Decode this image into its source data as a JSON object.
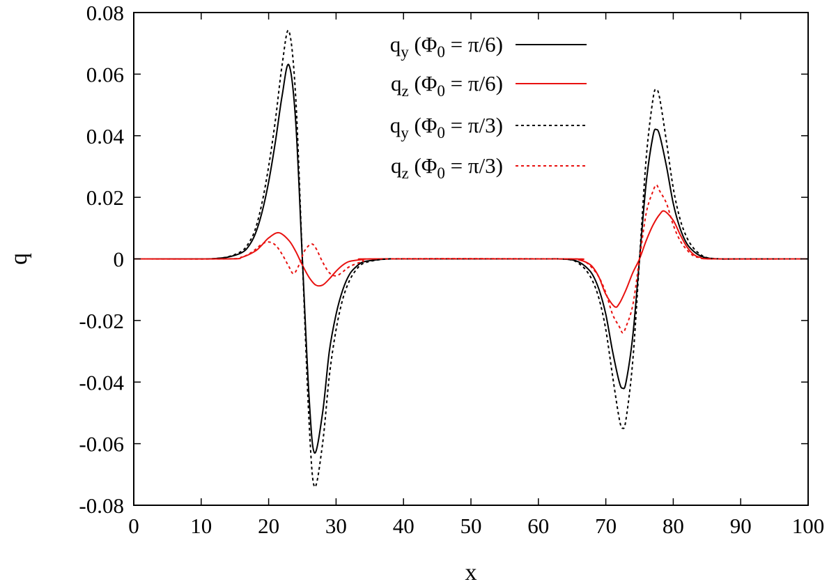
{
  "chart_data": {
    "type": "line",
    "title": "",
    "xlabel": "x",
    "ylabel": "q",
    "xlim": [
      0,
      100
    ],
    "ylim": [
      -0.08,
      0.08
    ],
    "xticks": [
      "0",
      "10",
      "20",
      "30",
      "40",
      "50",
      "60",
      "70",
      "80",
      "90",
      "100"
    ],
    "yticks": [
      "0.08",
      "0.06",
      "0.04",
      "0.02",
      "0",
      "-0.02",
      "-0.04",
      "-0.06",
      "-0.08"
    ],
    "grid": false,
    "legend_position": "top-center",
    "series": [
      {
        "name": "qy (Φ0 = π/6)",
        "legend": {
          "base": "q",
          "sub": "y",
          "open": " (Φ",
          "sub2": "0",
          "rest": " = π/6)"
        },
        "color": "#000000",
        "dash": "solid",
        "x": [
          0,
          10,
          12,
          14,
          16,
          17,
          18,
          19,
          20,
          21,
          22,
          23,
          24,
          25,
          26,
          26.8,
          28,
          29,
          30,
          31,
          32,
          33,
          34,
          36,
          38,
          40,
          60,
          63,
          65,
          66,
          67,
          68,
          69,
          70,
          71,
          72,
          72.5,
          73,
          74,
          75,
          76,
          77,
          77.5,
          78,
          79,
          80,
          81,
          82,
          83,
          84,
          85,
          87,
          90,
          100
        ],
        "y": [
          0,
          0,
          0.0001,
          0.0006,
          0.002,
          0.004,
          0.008,
          0.015,
          0.025,
          0.038,
          0.053,
          0.063,
          0.045,
          0.0,
          -0.045,
          -0.063,
          -0.05,
          -0.03,
          -0.018,
          -0.01,
          -0.005,
          -0.0025,
          -0.001,
          -0.0003,
          0,
          0,
          0,
          0,
          -0.0003,
          -0.001,
          -0.0025,
          -0.005,
          -0.01,
          -0.018,
          -0.03,
          -0.04,
          -0.042,
          -0.04,
          -0.025,
          0.0,
          0.025,
          0.04,
          0.042,
          0.04,
          0.03,
          0.018,
          0.01,
          0.005,
          0.0025,
          0.001,
          0.0003,
          0,
          0,
          0
        ]
      },
      {
        "name": "qz (Φ0 = π/6)",
        "legend": {
          "base": "q",
          "sub": "z",
          "open": " (Φ",
          "sub2": "0",
          "rest": " = π/6)"
        },
        "color": "#e8110f",
        "dash": "solid",
        "x": [
          0,
          14,
          16,
          18,
          19,
          20,
          21.5,
          23,
          24,
          25,
          26,
          27,
          28,
          29,
          30,
          31,
          32,
          34,
          36,
          64,
          66,
          67,
          68,
          69,
          70,
          71.3,
          72,
          73,
          74,
          75,
          76,
          77,
          78,
          78.7,
          80,
          81,
          82,
          83,
          84,
          86,
          100
        ],
        "y": [
          0,
          0,
          0.0005,
          0.0025,
          0.0045,
          0.0068,
          0.0085,
          0.006,
          0.0025,
          -0.002,
          -0.006,
          -0.0085,
          -0.0085,
          -0.0065,
          -0.004,
          -0.002,
          -0.0008,
          -0.0002,
          0,
          0,
          -0.0003,
          -0.001,
          -0.0025,
          -0.006,
          -0.0115,
          -0.0155,
          -0.0145,
          -0.01,
          -0.0045,
          0.0,
          0.006,
          0.011,
          0.0145,
          0.0155,
          0.0125,
          0.008,
          0.004,
          0.0015,
          0.0005,
          0,
          0
        ]
      },
      {
        "name": "qy (Φ0 = π/3)",
        "legend": {
          "base": "q",
          "sub": "y",
          "open": " (Φ",
          "sub2": "0",
          "rest": " = π/3)"
        },
        "color": "#000000",
        "dash": "dotted",
        "x": [
          0,
          10,
          12,
          14,
          16,
          17,
          18,
          19,
          20,
          21,
          22,
          23,
          24,
          25,
          26,
          26.8,
          28,
          29,
          30,
          31,
          32,
          33,
          34,
          36,
          38,
          40,
          60,
          63,
          65,
          66,
          67,
          68,
          69,
          70,
          71,
          72,
          72.5,
          73,
          74,
          75,
          76,
          77,
          77.5,
          78,
          79,
          80,
          81,
          82,
          83,
          84,
          85,
          87,
          90,
          100
        ],
        "y": [
          0,
          0,
          0.0001,
          0.0007,
          0.0025,
          0.005,
          0.0095,
          0.018,
          0.03,
          0.045,
          0.063,
          0.074,
          0.053,
          0.0,
          -0.053,
          -0.074,
          -0.06,
          -0.038,
          -0.023,
          -0.013,
          -0.007,
          -0.0035,
          -0.0015,
          -0.0004,
          0,
          0,
          0,
          0,
          -0.0004,
          -0.0015,
          -0.0035,
          -0.007,
          -0.013,
          -0.023,
          -0.038,
          -0.052,
          -0.055,
          -0.052,
          -0.033,
          0.0,
          0.033,
          0.052,
          0.055,
          0.052,
          0.038,
          0.023,
          0.013,
          0.007,
          0.0035,
          0.0015,
          0.0004,
          0,
          0,
          0
        ]
      },
      {
        "name": "qz (Φ0 = π/3)",
        "legend": {
          "base": "q",
          "sub": "z",
          "open": " (Φ",
          "sub2": "0",
          "rest": " = π/3)"
        },
        "color": "#e8110f",
        "dash": "dotted",
        "x": [
          0,
          14,
          16,
          17,
          18,
          19,
          20,
          21,
          22,
          23,
          23.7,
          24.5,
          25.3,
          26.3,
          27,
          28,
          29,
          30,
          31,
          32,
          34,
          36,
          64,
          66,
          67,
          68,
          69,
          70,
          71,
          72,
          72.5,
          73,
          74,
          75,
          76,
          77,
          77.5,
          78,
          79,
          80,
          81,
          82,
          83,
          84,
          86,
          100
        ],
        "y": [
          0,
          0,
          0.0006,
          0.0015,
          0.003,
          0.0048,
          0.0055,
          0.0045,
          0.0015,
          -0.0025,
          -0.0048,
          -0.002,
          0.0025,
          0.0048,
          0.0035,
          -0.001,
          -0.0045,
          -0.0055,
          -0.0042,
          -0.0025,
          -0.0008,
          0,
          0,
          -0.0004,
          -0.001,
          -0.003,
          -0.006,
          -0.011,
          -0.018,
          -0.022,
          -0.024,
          -0.022,
          -0.015,
          0.0,
          0.015,
          0.022,
          0.024,
          0.022,
          0.018,
          0.011,
          0.006,
          0.003,
          0.001,
          0.0004,
          0,
          0
        ]
      }
    ]
  }
}
